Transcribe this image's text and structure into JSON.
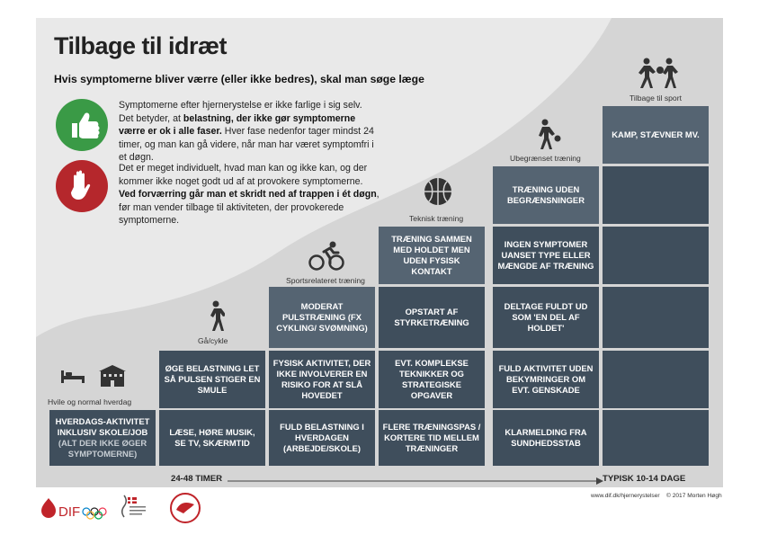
{
  "title": "Tilbage til idræt",
  "subtitle": "Hvis symptomerne bliver værre (eller ikke bedres), skal man søge læge",
  "intro": {
    "p1_a": "Symptomerne efter hjernerystelse er ikke farlige i sig selv. Det betyder, at ",
    "p1_b": "belastning, der ikke gør symptomerne værre er ok i alle faser.",
    "p1_c": " Hver fase nedenfor tager mindst 24 timer, og man kan gå videre, når man har været symptomfri i et døgn.",
    "p2_a": "Det er meget individuelt, hvad man kan og ikke kan, og der kommer ikke noget godt ud af at provokere symptomerne.",
    "p2_b": "Ved forværring går man et skridt ned af trappen i ét døgn",
    "p2_c": ", før man vender tilbage til aktiviteten, der provokerede symptomerne."
  },
  "icons": {
    "thumbs": "thumbs-up-icon",
    "hand": "stop-hand-icon",
    "colors": {
      "green": "#3a9a46",
      "red": "#b5272c",
      "cell": "#3f4e5c"
    }
  },
  "stages": [
    {
      "label": "Hvile og normal hverdag",
      "icon": "bed-school-icon",
      "cells": [
        "HVERDAGS-AKTIVITET INKLUSIV SKOLE/JOB",
        "(ALT DER IKKE ØGER SYMPTOMERNE)"
      ]
    },
    {
      "label": "Gå/cykle",
      "icon": "walking-icon",
      "cells": [
        "ØGE BELASTNING LET SÅ PULSEN STIGER EN SMULE",
        "LÆSE, HØRE MUSIK, SE TV, SKÆRMTID"
      ]
    },
    {
      "label": "Sportsrelateret træning",
      "icon": "cycling-icon",
      "cells": [
        "MODERAT PULSTRÆNING (FX CYKLING/ SVØMNING)",
        "FYSISK AKTIVITET, DER IKKE INVOLVERER EN RISIKO FOR AT SLÅ HOVEDET",
        "FULD BELASTNING I HVERDAGEN (ARBEJDE/SKOLE)"
      ]
    },
    {
      "label": "Teknisk træning",
      "icon": "ball-icon",
      "cells": [
        "TRÆNING SAMMEN MED HOLDET MEN UDEN FYSISK KONTAKT",
        "OPSTART AF STYRKETRÆNING",
        "EVT. KOMPLEKSE TEKNIKKER OG STRATEGISKE OPGAVER",
        "FLERE TRÆNINGSPAS / KORTERE TID MELLEM TRÆNINGER"
      ]
    },
    {
      "label": "Ubegrænset træning",
      "icon": "dribbling-icon",
      "cells": [
        "TRÆNING UDEN BEGRÆNSNINGER",
        "INGEN SYMPTOMER UANSET TYPE ELLER MÆNGDE AF TRÆNING",
        "DELTAGE FULDT UD SOM 'EN DEL AF HOLDET'",
        "FULD AKTIVITET UDEN BEKYMRINGER OM EVT. GENSKADE",
        "KLARMELDING FRA SUNDHEDSSTAB"
      ]
    },
    {
      "label": "Tilbage til sport",
      "icon": "players-icon",
      "cells": [
        "KAMP, STÆVNER MV."
      ]
    }
  ],
  "axis": {
    "left": "24-48 TIMER",
    "right": "TYPISK 10-14 DAGE"
  },
  "footer": {
    "url": "www.dif.dk/hjernerystelser",
    "copyright": "© 2017 Morten Høgh",
    "dif": "DIF"
  }
}
